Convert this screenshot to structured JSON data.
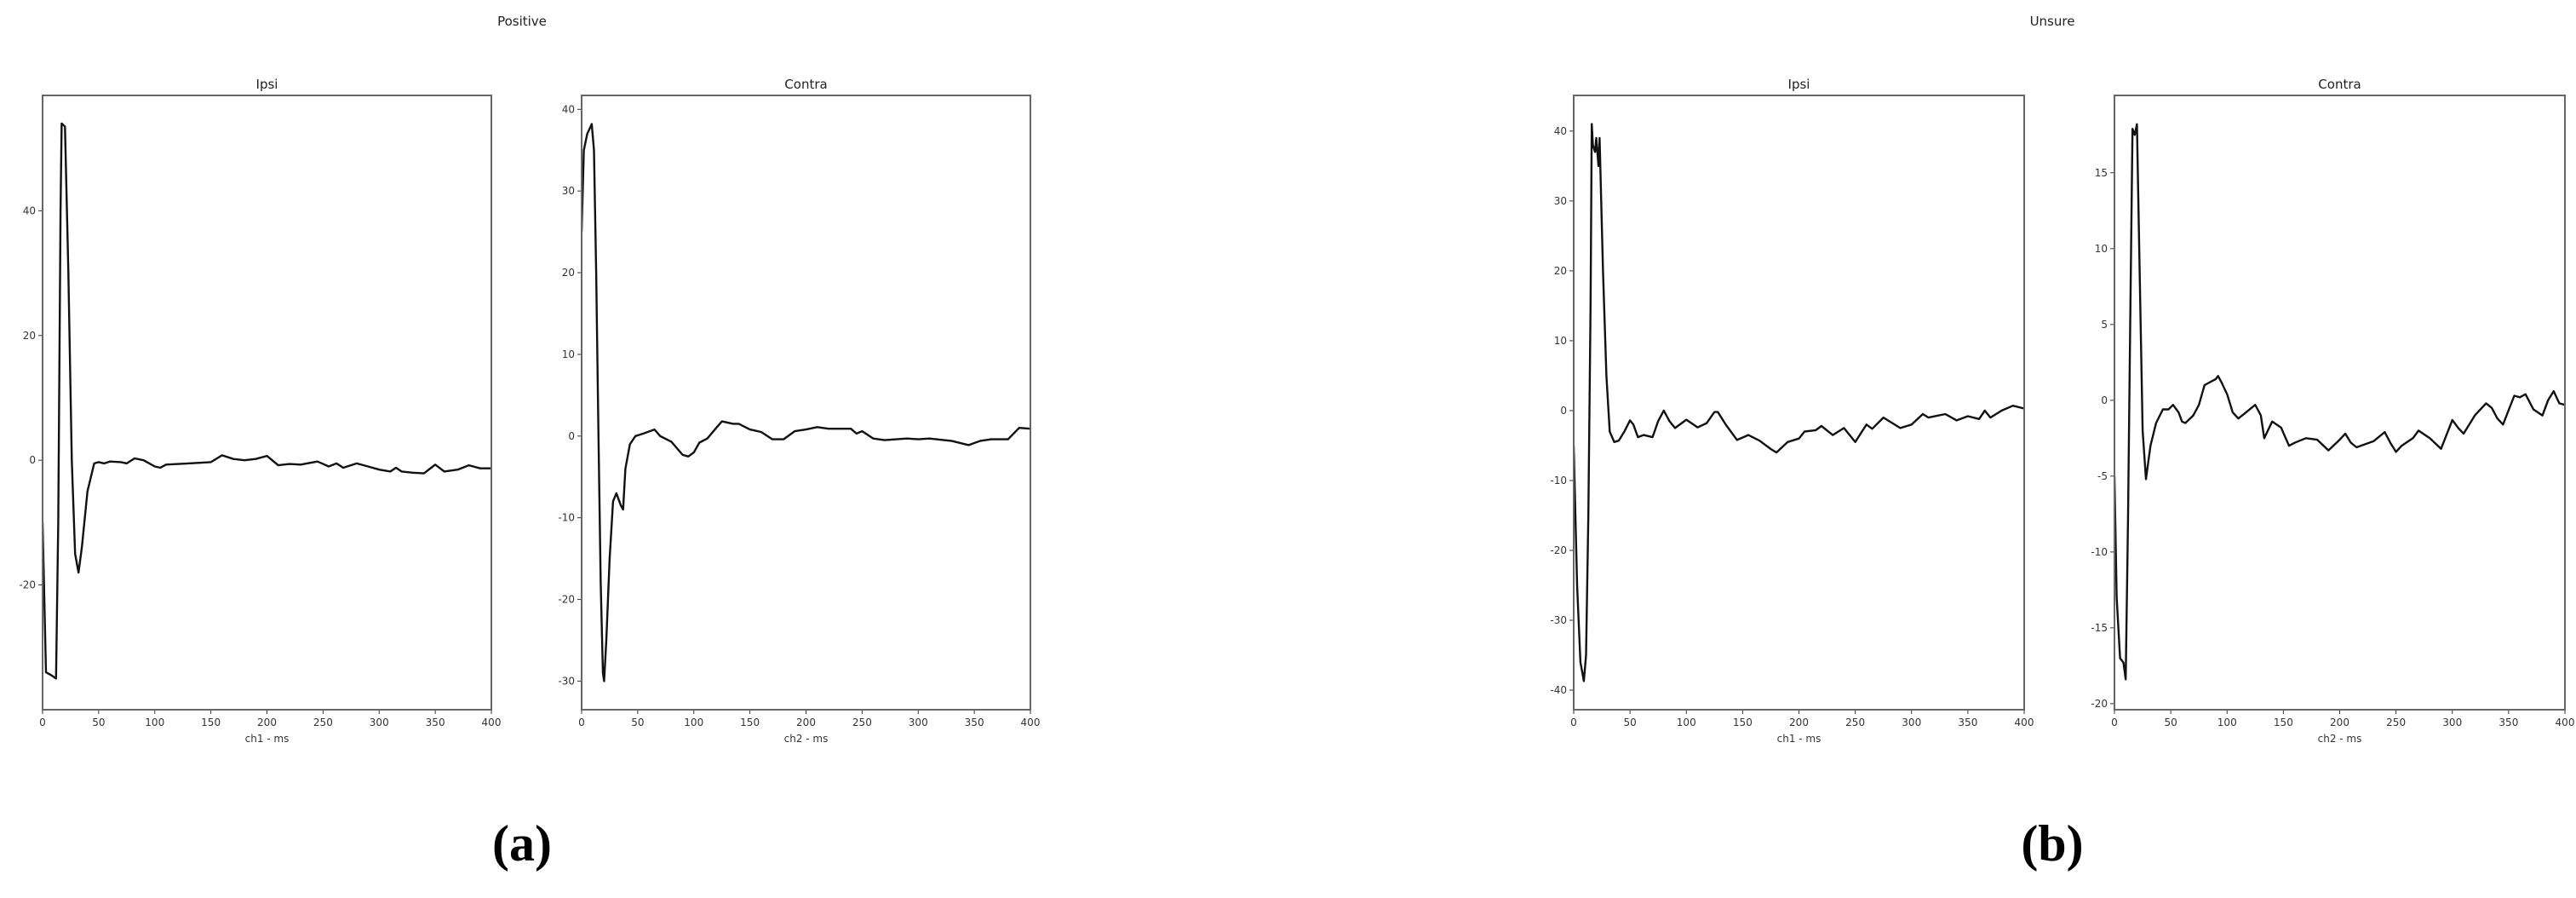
{
  "figures": [
    {
      "suptitle": "Positive",
      "panel_label": "(a)",
      "charts": [
        0,
        1
      ]
    },
    {
      "suptitle": "Unsure",
      "panel_label": "(b)",
      "charts": [
        2,
        3
      ]
    }
  ],
  "colors": {
    "line": "#111111",
    "frame": "#666666"
  },
  "chart_data": [
    {
      "type": "line",
      "title": "Ipsi",
      "xlabel": "ch1 - ms",
      "ylabel": "",
      "xlim": [
        0,
        400
      ],
      "ylim": [
        -40,
        58.5
      ],
      "grid": false,
      "xticks": [
        0,
        50,
        100,
        150,
        200,
        250,
        300,
        350,
        400
      ],
      "yticks": [
        -20,
        0,
        20,
        40
      ],
      "x": [
        0,
        3,
        8,
        12,
        14,
        16,
        17,
        20,
        23,
        26,
        29,
        32,
        35,
        40,
        46,
        50,
        55,
        60,
        70,
        75,
        82,
        90,
        100,
        105,
        110,
        130,
        150,
        160,
        170,
        180,
        190,
        200,
        210,
        220,
        230,
        245,
        255,
        262,
        268,
        280,
        290,
        300,
        310,
        315,
        320,
        330,
        340,
        350,
        358,
        370,
        380,
        390,
        400
      ],
      "y": [
        -10,
        -34,
        -34.5,
        -35,
        -10,
        40,
        54,
        53.5,
        30,
        0,
        -15,
        -18,
        -14,
        -5,
        -0.5,
        -0.3,
        -0.5,
        -0.2,
        -0.3,
        -0.5,
        0.3,
        0,
        -1,
        -1.2,
        -0.7,
        -0.5,
        -0.3,
        0.8,
        0.2,
        0,
        0.2,
        0.7,
        -0.8,
        -0.6,
        -0.7,
        -0.2,
        -1,
        -0.5,
        -1.2,
        -0.5,
        -1,
        -1.5,
        -1.8,
        -1.2,
        -1.8,
        -2,
        -2.1,
        -0.7,
        -1.8,
        -1.5,
        -0.8,
        -1.3,
        -1.3
      ]
    },
    {
      "type": "line",
      "title": "Contra",
      "xlabel": "ch2 - ms",
      "ylabel": "",
      "xlim": [
        0,
        400
      ],
      "ylim": [
        -33.5,
        41.7
      ],
      "grid": false,
      "xticks": [
        0,
        50,
        100,
        150,
        200,
        250,
        300,
        350,
        400
      ],
      "yticks": [
        -30,
        -20,
        -10,
        0,
        10,
        20,
        30,
        40
      ],
      "x": [
        0,
        2,
        5,
        9,
        11,
        13,
        15,
        17,
        19,
        20,
        22,
        25,
        28,
        31,
        35,
        37,
        39,
        43,
        48,
        55,
        65,
        70,
        80,
        90,
        95,
        100,
        105,
        112,
        120,
        125,
        135,
        140,
        150,
        160,
        170,
        180,
        190,
        200,
        210,
        220,
        240,
        245,
        250,
        260,
        270,
        290,
        300,
        310,
        330,
        345,
        355,
        365,
        370,
        380,
        390,
        400
      ],
      "y": [
        25,
        35,
        37,
        38.2,
        35,
        20,
        0,
        -18,
        -29,
        -30,
        -25,
        -15,
        -8,
        -7,
        -8.5,
        -9,
        -4,
        -1,
        0,
        0.3,
        0.8,
        0,
        -0.7,
        -2.3,
        -2.5,
        -2,
        -0.8,
        -0.3,
        1,
        1.8,
        1.5,
        1.5,
        0.8,
        0.5,
        -0.4,
        -0.4,
        0.6,
        0.8,
        1.1,
        0.9,
        0.9,
        0.3,
        0.6,
        -0.3,
        -0.5,
        -0.3,
        -0.4,
        -0.3,
        -0.6,
        -1.1,
        -0.6,
        -0.4,
        -0.4,
        -0.4,
        1,
        0.9
      ]
    },
    {
      "type": "line",
      "title": "Ipsi",
      "xlabel": "ch1 - ms",
      "ylabel": "",
      "xlim": [
        0,
        400
      ],
      "ylim": [
        -42.8,
        45.1
      ],
      "grid": false,
      "xticks": [
        0,
        50,
        100,
        150,
        200,
        250,
        300,
        350,
        400
      ],
      "yticks": [
        -40,
        -30,
        -20,
        -10,
        0,
        10,
        20,
        30,
        40
      ],
      "x": [
        0,
        3,
        6,
        9,
        11,
        13,
        15,
        16,
        17,
        19,
        20,
        22,
        23,
        26,
        29,
        32,
        36,
        40,
        45,
        50,
        53,
        57,
        62,
        70,
        75,
        80,
        85,
        90,
        100,
        110,
        118,
        125,
        128,
        135,
        145,
        155,
        165,
        175,
        180,
        190,
        200,
        205,
        215,
        220,
        230,
        240,
        250,
        260,
        265,
        275,
        290,
        300,
        310,
        315,
        330,
        340,
        350,
        360,
        365,
        370,
        380,
        390,
        400
      ],
      "y": [
        -5,
        -25,
        -36,
        -38.7,
        -35,
        -15,
        15,
        41,
        38,
        37,
        39,
        35,
        39,
        20,
        5,
        -3,
        -4.5,
        -4.3,
        -3,
        -1.4,
        -2,
        -3.8,
        -3.5,
        -3.8,
        -1.5,
        0,
        -1.5,
        -2.5,
        -1.3,
        -2.4,
        -1.8,
        -0.2,
        -0.2,
        -2,
        -4.2,
        -3.5,
        -4.3,
        -5.5,
        -6,
        -4.5,
        -4,
        -3,
        -2.8,
        -2.2,
        -3.5,
        -2.5,
        -4.5,
        -2,
        -2.6,
        -1,
        -2.5,
        -2,
        -0.5,
        -1,
        -0.5,
        -1.4,
        -0.8,
        -1.2,
        0,
        -1,
        0,
        0.7,
        0.3
      ]
    },
    {
      "type": "line",
      "title": "Contra",
      "xlabel": "ch2 - ms",
      "ylabel": "",
      "xlim": [
        0,
        400
      ],
      "ylim": [
        -20.4,
        20.1
      ],
      "grid": false,
      "xticks": [
        0,
        50,
        100,
        150,
        200,
        250,
        300,
        350,
        400
      ],
      "yticks": [
        -20,
        -15,
        -10,
        -5,
        0,
        5,
        10,
        15
      ],
      "x": [
        0,
        2,
        5,
        8,
        10,
        12,
        14,
        16,
        18,
        20,
        22,
        25,
        28,
        32,
        37,
        43,
        48,
        52,
        57,
        60,
        63,
        70,
        75,
        80,
        90,
        92,
        95,
        100,
        105,
        110,
        115,
        125,
        130,
        133,
        140,
        148,
        155,
        160,
        170,
        180,
        190,
        200,
        205,
        210,
        215,
        230,
        240,
        245,
        250,
        255,
        265,
        270,
        280,
        290,
        300,
        305,
        310,
        320,
        330,
        335,
        340,
        345,
        355,
        360,
        365,
        372,
        380,
        385,
        390,
        395,
        400
      ],
      "y": [
        -5,
        -13,
        -17,
        -17.3,
        -18.4,
        -8,
        5,
        17.9,
        17.5,
        18.2,
        10,
        -2,
        -5.2,
        -3,
        -1.5,
        -0.6,
        -0.6,
        -0.3,
        -0.8,
        -1.4,
        -1.5,
        -1,
        -0.3,
        1,
        1.4,
        1.6,
        1.2,
        0.4,
        -0.8,
        -1.2,
        -0.9,
        -0.3,
        -1,
        -2.5,
        -1.4,
        -1.8,
        -3,
        -2.8,
        -2.5,
        -2.6,
        -3.3,
        -2.6,
        -2.2,
        -2.8,
        -3.1,
        -2.7,
        -2.1,
        -2.8,
        -3.4,
        -3,
        -2.5,
        -2,
        -2.5,
        -3.2,
        -1.3,
        -1.8,
        -2.2,
        -1,
        -0.2,
        -0.5,
        -1.2,
        -1.6,
        0.3,
        0.2,
        0.4,
        -0.6,
        -1,
        0,
        0.6,
        -0.2,
        -0.3
      ]
    }
  ]
}
